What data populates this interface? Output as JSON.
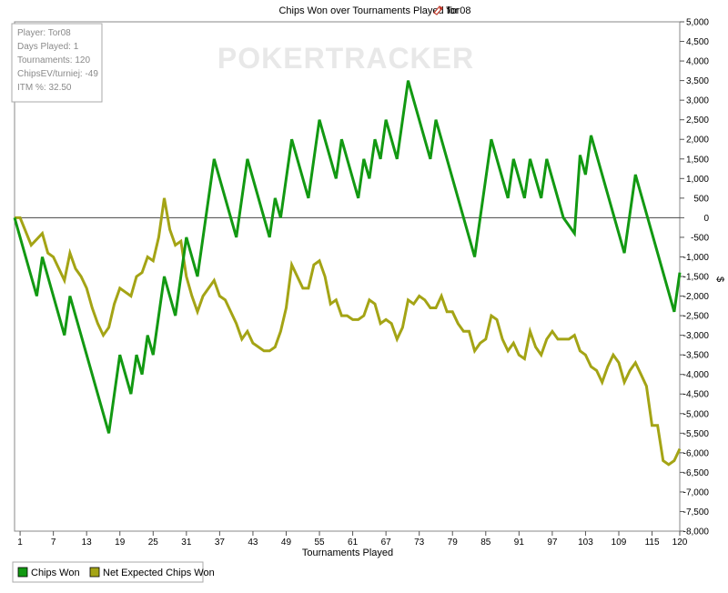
{
  "chart_data": {
    "type": "line",
    "title": "Chips Won over Tournaments Played for",
    "player_name": "Tor08",
    "watermark": "POKERTRACKER",
    "xlabel": "Tournaments Played",
    "ylabel": "$",
    "xlim": [
      0,
      120
    ],
    "ylim": [
      -8000,
      5000
    ],
    "x_ticks": [
      1,
      7,
      13,
      19,
      25,
      31,
      37,
      43,
      49,
      55,
      61,
      67,
      73,
      79,
      85,
      91,
      97,
      103,
      109,
      115,
      120
    ],
    "y_ticks": [
      5000,
      4500,
      4000,
      3500,
      3000,
      2500,
      2000,
      1500,
      1000,
      500,
      0,
      -500,
      -1000,
      -1500,
      -2000,
      -2500,
      -3000,
      -3500,
      -4000,
      -4500,
      -5000,
      -5500,
      -6000,
      -6500,
      -7000,
      -7500,
      -8000
    ],
    "grid": false,
    "legend_position": "bottom-left",
    "series": [
      {
        "name": "Chips Won",
        "color": "#129912",
        "x": [
          0,
          4,
          5,
          9,
          10,
          17,
          19,
          21,
          22,
          23,
          24,
          25,
          27,
          29,
          31,
          33,
          36,
          40,
          42,
          46,
          47,
          48,
          50,
          53,
          55,
          58,
          59,
          62,
          63,
          64,
          65,
          66,
          67,
          69,
          71,
          75,
          76,
          83,
          86,
          89,
          90,
          92,
          93,
          95,
          96,
          98,
          99,
          101,
          102,
          103,
          104,
          110,
          112,
          119,
          120
        ],
        "y": [
          0,
          -2000,
          -1000,
          -3000,
          -2000,
          -5500,
          -3500,
          -4500,
          -3500,
          -4000,
          -3000,
          -3500,
          -1500,
          -2500,
          -500,
          -1500,
          1500,
          -500,
          1500,
          -500,
          500,
          0,
          2000,
          500,
          2500,
          1000,
          2000,
          500,
          1500,
          1000,
          2000,
          1500,
          2500,
          1500,
          3500,
          1500,
          2500,
          -1000,
          2000,
          500,
          1500,
          500,
          1500,
          500,
          1500,
          500,
          0,
          -400,
          1600,
          1100,
          2100,
          -900,
          1100,
          -2400,
          -1400
        ]
      },
      {
        "name": "Net Expected Chips Won",
        "color": "#a4a415",
        "x": [
          0,
          1,
          3,
          5,
          6,
          7,
          9,
          10,
          11,
          12,
          13,
          14,
          15,
          16,
          17,
          18,
          19,
          20,
          21,
          22,
          23,
          24,
          25,
          26,
          27,
          28,
          29,
          30,
          31,
          32,
          33,
          34,
          35,
          36,
          37,
          38,
          39,
          40,
          41,
          42,
          43,
          44,
          45,
          46,
          47,
          48,
          49,
          50,
          51,
          52,
          53,
          54,
          55,
          56,
          57,
          58,
          59,
          60,
          61,
          62,
          63,
          64,
          65,
          66,
          67,
          68,
          69,
          70,
          71,
          72,
          73,
          74,
          75,
          76,
          77,
          78,
          79,
          80,
          81,
          82,
          83,
          84,
          85,
          86,
          87,
          88,
          89,
          90,
          91,
          92,
          93,
          94,
          95,
          96,
          97,
          98,
          99,
          100,
          101,
          102,
          103,
          104,
          105,
          106,
          107,
          108,
          109,
          110,
          111,
          112,
          113,
          114,
          115,
          116,
          117,
          118,
          119,
          120
        ],
        "y": [
          0,
          0,
          -700,
          -400,
          -900,
          -1000,
          -1600,
          -900,
          -1300,
          -1500,
          -1800,
          -2300,
          -2700,
          -3000,
          -2800,
          -2200,
          -1800,
          -1900,
          -2000,
          -1500,
          -1400,
          -1000,
          -1100,
          -500,
          500,
          -300,
          -700,
          -600,
          -1500,
          -2000,
          -2400,
          -2000,
          -1800,
          -1600,
          -2000,
          -2100,
          -2400,
          -2700,
          -3100,
          -2900,
          -3200,
          -3300,
          -3400,
          -3400,
          -3300,
          -2900,
          -2300,
          -1200,
          -1500,
          -1800,
          -1800,
          -1200,
          -1100,
          -1500,
          -2200,
          -2100,
          -2500,
          -2500,
          -2600,
          -2600,
          -2500,
          -2100,
          -2200,
          -2700,
          -2600,
          -2700,
          -3100,
          -2800,
          -2100,
          -2200,
          -2000,
          -2100,
          -2300,
          -2300,
          -2000,
          -2400,
          -2400,
          -2700,
          -2900,
          -2900,
          -3400,
          -3200,
          -3100,
          -2500,
          -2600,
          -3100,
          -3400,
          -3200,
          -3500,
          -3600,
          -2900,
          -3300,
          -3500,
          -3100,
          -2900,
          -3100,
          -3100,
          -3100,
          -3000,
          -3400,
          -3500,
          -3800,
          -3900,
          -4200,
          -3800,
          -3500,
          -3700,
          -4200,
          -3900,
          -3700,
          -4000,
          -4300,
          -5300,
          -5300,
          -6200,
          -6300,
          -6200,
          -5900
        ]
      }
    ],
    "info_box": {
      "lines": [
        "Player: Tor08",
        "Days Played: 1",
        "Tournaments: 120",
        "ChipsEV/turniej: -49",
        "ITM %: 32.50"
      ]
    }
  }
}
